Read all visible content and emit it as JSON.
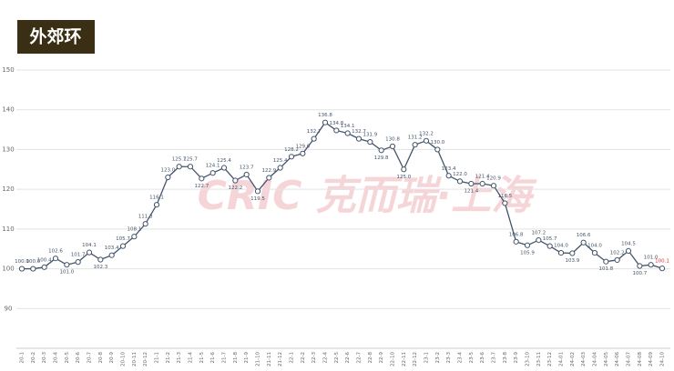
{
  "chart_data": {
    "type": "line",
    "title": "外郊环",
    "watermark": "CRIC 克而瑞·上海",
    "categories": [
      "20-1",
      "20-2",
      "20-3",
      "20-4",
      "20-5",
      "20-6",
      "20-7",
      "20-8",
      "20-9",
      "20-10",
      "20-11",
      "20-12",
      "21-1",
      "21-2",
      "21-3",
      "21-4",
      "21-5",
      "21-6",
      "21-7",
      "21-8",
      "21-9",
      "21-10",
      "21-11",
      "21-12",
      "22-1",
      "22-2",
      "22-3",
      "22-4",
      "22-5",
      "22-6",
      "22-7",
      "22-8",
      "22-9",
      "22-10",
      "22-11",
      "22-12",
      "23-1",
      "23-2",
      "23-3",
      "23-4",
      "23-5",
      "23-6",
      "23-7",
      "23-8",
      "23-9",
      "23-10",
      "23-11",
      "23-12",
      "24-01",
      "24-02",
      "24-03",
      "24-04",
      "24-05",
      "24-06",
      "24-07",
      "24-08",
      "24-09",
      "24-10"
    ],
    "series": [
      {
        "name": "外郊环",
        "color": "#44546a",
        "values": [
          100,
          100,
          100.4,
          102.6,
          101,
          101.7,
          104.1,
          102.3,
          103.4,
          105.7,
          108.1,
          111.3,
          116.1,
          123,
          125.7,
          125.7,
          122.7,
          124.1,
          125.4,
          122.2,
          123.7,
          119.5,
          122.9,
          125.4,
          128.2,
          129,
          132.7,
          136.8,
          134.8,
          134.1,
          132.7,
          131.9,
          129.8,
          130.8,
          125,
          131.2,
          132.2,
          130,
          123.4,
          122,
          121.4,
          121.4,
          120.9,
          116.5,
          106.8,
          105.9,
          107.2,
          105.7,
          104,
          103.9,
          106.6,
          104,
          101.8,
          102.2,
          104.5,
          100.7,
          101,
          100.1
        ],
        "value_labels": [
          "100.0",
          "100.0",
          "100.4",
          "102.6",
          "101.0",
          "101.7",
          "104.1",
          "102.3",
          "103.4",
          "105.7",
          "108.1",
          "111.3",
          "116.1",
          "123.0",
          "125.7",
          "125.7",
          "122.7",
          "124.1",
          "125.4",
          "122.2",
          "123.7",
          "119.5",
          "122.9",
          "125.4",
          "128.2",
          "129.0",
          "132.7",
          "136.8",
          "134.8",
          "134.1",
          "132.7",
          "131.9",
          "129.8",
          "130.8",
          "125.0",
          "131.2",
          "132.2",
          "130.0",
          "123.4",
          "122.0",
          "121.4",
          "121.4",
          "120.9",
          "116.5",
          "106.8",
          "105.9",
          "107.2",
          "105.7",
          "104.0",
          "103.9",
          "106.6",
          "104.0",
          "101.8",
          "102.2",
          "104.5",
          "100.7",
          "101.0",
          "100.1"
        ],
        "highlight_last_color": "#e0312f"
      }
    ],
    "ylim": [
      80,
      150
    ],
    "yticks": [
      90,
      100,
      110,
      120,
      130,
      140,
      150
    ],
    "grid": true
  }
}
